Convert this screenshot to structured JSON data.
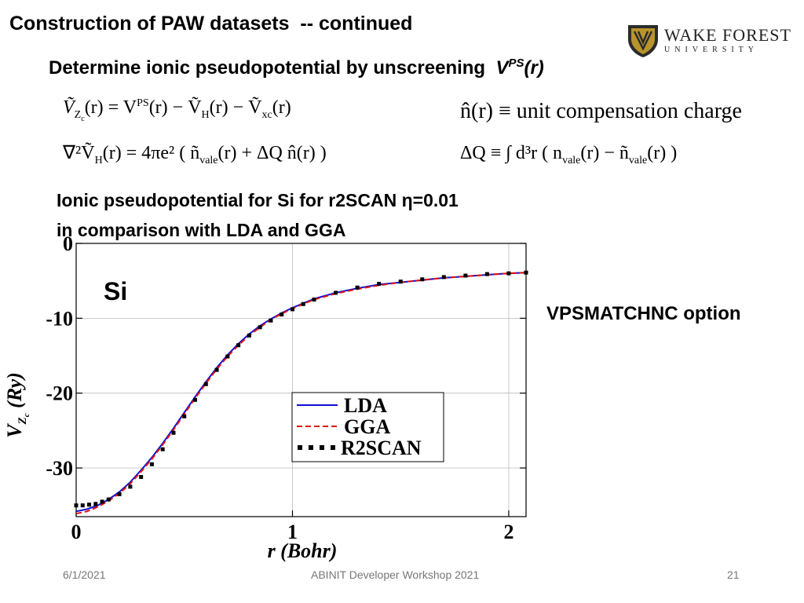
{
  "slide": {
    "title": "Construction of PAW datasets  -- continued",
    "subtitle_prefix": "Determine ionic pseudopotential by unscreening  ",
    "subtitle_v": "V",
    "subtitle_ps": "PS",
    "subtitle_r": "(r)",
    "section_line1": "Ionic pseudopotential for Si for r2SCAN η=0.01",
    "section_line2": "in comparison with LDA and GGA",
    "side_note": "VPSMATCHNC option",
    "logo_name": "WAKE FOREST",
    "logo_sub": "UNIVERSITY"
  },
  "equations": {
    "eq1_lhs": "Ṽ",
    "eq1_rhs": "(r) = V",
    "eq1_ps": "PS",
    "eq1_rest": "(r) − Ṽ",
    "eq1_h": "H",
    "eq1_mid": "(r) − Ṽ",
    "eq1_xc": "xc",
    "eq1_end": "(r)",
    "eq2_text": "∇²Ṽ",
    "eq2_h": "H",
    "eq2_rest": "(r) = 4πe² ( ñ",
    "eq2_vale": "vale",
    "eq2_end": "(r) + ΔQ n̂(r) )",
    "eq3_text": "n̂(r) ≡ unit compensation charge",
    "eq4_text": "ΔQ ≡ ∫ d³r ( n",
    "eq4_vale1": "vale",
    "eq4_mid": "(r) − ñ",
    "eq4_vale2": "vale",
    "eq4_end": "(r) )"
  },
  "footer": {
    "date": "6/1/2021",
    "workshop": "ABINIT Developer Workshop 2021",
    "page": "21"
  },
  "colors": {
    "lda": "#1010d0",
    "gga": "#e01010",
    "r2scan": "#000000"
  },
  "chart_data": {
    "type": "line",
    "annotation": "Si",
    "xlabel": "r (Bohr)",
    "ylabel": "V_Zc (Ry)",
    "xlim": [
      0,
      2.08
    ],
    "ylim": [
      -36.5,
      0
    ],
    "xticks": [
      0,
      1,
      2
    ],
    "yticks": [
      0,
      -10,
      -20,
      -30
    ],
    "legend_position": "lower-right",
    "series": [
      {
        "name": "LDA",
        "style": "solid",
        "x": [
          0,
          0.05,
          0.1,
          0.15,
          0.2,
          0.25,
          0.3,
          0.35,
          0.4,
          0.45,
          0.5,
          0.55,
          0.6,
          0.65,
          0.7,
          0.75,
          0.8,
          0.85,
          0.9,
          0.95,
          1.0,
          1.1,
          1.2,
          1.3,
          1.4,
          1.5,
          1.6,
          1.7,
          1.8,
          1.9,
          2.0,
          2.08
        ],
        "y": [
          -35.8,
          -35.5,
          -35.0,
          -34.2,
          -33.2,
          -31.9,
          -30.3,
          -28.6,
          -26.7,
          -24.7,
          -22.6,
          -20.5,
          -18.5,
          -16.6,
          -14.9,
          -13.4,
          -12.1,
          -11.0,
          -10.1,
          -9.3,
          -8.6,
          -7.4,
          -6.6,
          -6.0,
          -5.5,
          -5.2,
          -4.9,
          -4.6,
          -4.4,
          -4.2,
          -4.0,
          -3.9
        ]
      },
      {
        "name": "GGA",
        "style": "dashed",
        "x": [
          0,
          0.05,
          0.1,
          0.15,
          0.2,
          0.25,
          0.3,
          0.35,
          0.4,
          0.45,
          0.5,
          0.55,
          0.6,
          0.65,
          0.7,
          0.75,
          0.8,
          0.85,
          0.9,
          0.95,
          1.0,
          1.1,
          1.2,
          1.3,
          1.4,
          1.5,
          1.6,
          1.7,
          1.8,
          1.9,
          2.0,
          2.08
        ],
        "y": [
          -36.1,
          -35.8,
          -35.2,
          -34.4,
          -33.4,
          -32.1,
          -30.5,
          -28.8,
          -26.9,
          -24.9,
          -22.8,
          -20.7,
          -18.7,
          -16.8,
          -15.1,
          -13.6,
          -12.3,
          -11.2,
          -10.2,
          -9.4,
          -8.7,
          -7.5,
          -6.7,
          -6.1,
          -5.6,
          -5.2,
          -4.9,
          -4.6,
          -4.4,
          -4.2,
          -4.0,
          -3.9
        ]
      },
      {
        "name": "R2SCAN",
        "style": "dotted",
        "x": [
          0,
          0.03,
          0.06,
          0.09,
          0.12,
          0.15,
          0.2,
          0.25,
          0.3,
          0.35,
          0.4,
          0.45,
          0.5,
          0.55,
          0.6,
          0.65,
          0.7,
          0.75,
          0.8,
          0.85,
          0.9,
          0.95,
          1.0,
          1.05,
          1.1,
          1.2,
          1.3,
          1.4,
          1.5,
          1.6,
          1.7,
          1.8,
          1.9,
          2.0,
          2.08
        ],
        "y": [
          -35.0,
          -35.0,
          -34.9,
          -34.8,
          -34.5,
          -34.2,
          -33.5,
          -32.5,
          -31.2,
          -29.5,
          -27.5,
          -25.3,
          -23.1,
          -20.9,
          -18.8,
          -16.9,
          -15.1,
          -13.6,
          -12.3,
          -11.2,
          -10.3,
          -9.5,
          -8.8,
          -8.1,
          -7.5,
          -6.6,
          -5.9,
          -5.4,
          -5.1,
          -4.8,
          -4.5,
          -4.3,
          -4.1,
          -4.0,
          -3.9
        ]
      }
    ]
  }
}
